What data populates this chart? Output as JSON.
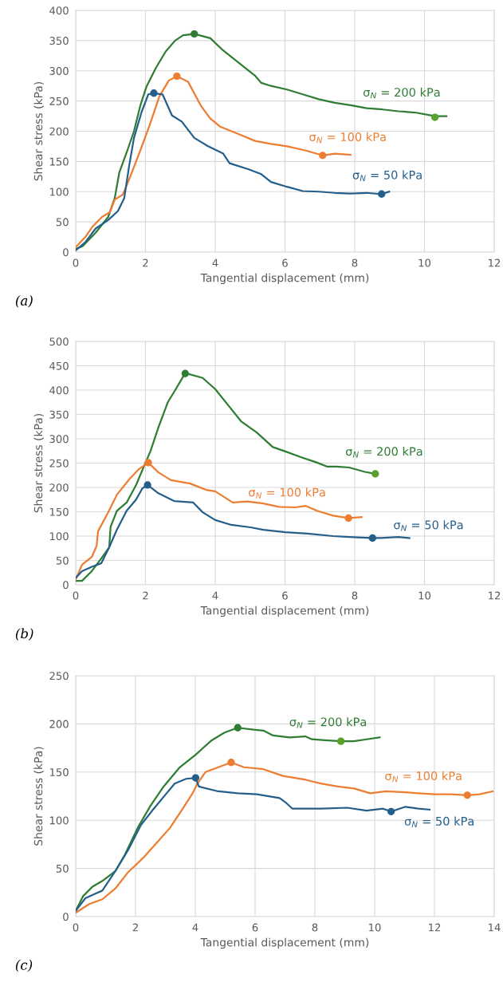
{
  "chart_data": [
    {
      "type": "line",
      "xlabel": "Tangential displacement (mm)",
      "ylabel": "Shear stress (kPa)",
      "xlim": [
        0,
        12
      ],
      "xticks": [
        0,
        2,
        4,
        6,
        8,
        10,
        12
      ],
      "ylim": [
        0,
        400
      ],
      "yticks": [
        0,
        50,
        100,
        150,
        200,
        250,
        300,
        350,
        400
      ],
      "grid": true,
      "marker": "none",
      "series": [
        {
          "name": "σ$_{N}$ = 200 kPa",
          "color": "#2e7d32",
          "x": [
            0,
            0.2,
            0.57,
            0.93,
            1.12,
            1.25,
            1.48,
            1.67,
            1.85,
            2.03,
            2.3,
            2.58,
            2.85,
            3.08,
            3.4,
            3.86,
            4.22,
            4.68,
            5.14,
            5.32,
            5.6,
            6.06,
            6.51,
            6.97,
            7.43,
            7.88,
            8.34,
            8.8,
            9.26,
            9.73,
            10.31,
            10.63
          ],
          "values": [
            5,
            10,
            32,
            58,
            90,
            132,
            168,
            200,
            242,
            274,
            305,
            332,
            350,
            359,
            361,
            354,
            334,
            313,
            292,
            280,
            275,
            269,
            261,
            253,
            247,
            243,
            238,
            236,
            233,
            231,
            225,
            225
          ]
        },
        {
          "name": "σ$_{N}$ = 100 kPa",
          "color": "#ed7d31",
          "x": [
            0,
            0.29,
            0.48,
            0.75,
            0.98,
            1.12,
            1.35,
            1.57,
            1.85,
            2.12,
            2.4,
            2.67,
            2.9,
            3.22,
            3.59,
            3.86,
            4.13,
            4.68,
            5.14,
            5.6,
            6.06,
            6.6,
            7.08,
            7.43,
            7.88
          ],
          "values": [
            8,
            26,
            42,
            58,
            66,
            87,
            95,
            126,
            168,
            210,
            258,
            284,
            291,
            282,
            242,
            221,
            208,
            195,
            184,
            179,
            175,
            168,
            160,
            163,
            161
          ]
        },
        {
          "name": "σ$_{N}$ = 50 kPa",
          "color": "#245f8c",
          "x": [
            0,
            0.27,
            0.57,
            0.93,
            1.21,
            1.39,
            1.53,
            1.67,
            1.89,
            2.08,
            2.24,
            2.49,
            2.76,
            3.04,
            3.4,
            3.77,
            4.23,
            4.41,
            4.96,
            5.32,
            5.6,
            6.06,
            6.51,
            6.97,
            7.43,
            7.88,
            8.34,
            8.77,
            8.99
          ],
          "values": [
            3,
            16,
            39,
            53,
            68,
            89,
            142,
            189,
            232,
            261,
            263,
            261,
            226,
            216,
            189,
            176,
            163,
            147,
            137,
            129,
            116,
            108,
            101,
            100,
            98,
            97,
            98,
            96,
            100
          ]
        },
        {
          "type": "scatter",
          "marker": "circle",
          "colors": [
            "#2e7d32",
            "#ed7d31",
            "#245f8c"
          ],
          "x": [
            3.4,
            2.9,
            2.24
          ],
          "values": [
            361,
            291,
            263
          ]
        },
        {
          "type": "scatter",
          "marker": "circle",
          "colors": [
            "#5aa02c",
            "#ed7d31",
            "#245f8c"
          ],
          "x": [
            10.3,
            7.08,
            8.77
          ],
          "values": [
            223,
            160,
            96
          ]
        }
      ],
      "annotations": [
        "(a)"
      ]
    },
    {
      "type": "line",
      "xlabel": "Tangential displacement (mm)",
      "ylabel": "Shear stress (kPa)",
      "xlim": [
        0,
        12
      ],
      "xticks": [
        0,
        2,
        4,
        6,
        8,
        10,
        12
      ],
      "ylim": [
        0,
        500
      ],
      "yticks": [
        0,
        50,
        100,
        150,
        200,
        250,
        300,
        350,
        400,
        450,
        500
      ],
      "grid": true,
      "marker": "none",
      "series": [
        {
          "name": "σ$_{N}$ = 200 kPa",
          "color": "#2e7d32",
          "x": [
            0,
            0.18,
            0.46,
            0.73,
            0.96,
            1.0,
            1.18,
            1.46,
            1.73,
            1.96,
            2.14,
            2.37,
            2.64,
            2.87,
            3.14,
            3.64,
            4.0,
            4.37,
            4.74,
            5.19,
            5.65,
            6.01,
            6.47,
            6.92,
            7.2,
            7.47,
            7.84,
            8.29,
            8.59
          ],
          "values": [
            8,
            8,
            28,
            54,
            77,
            119,
            152,
            169,
            205,
            244,
            274,
            323,
            375,
            402,
            435,
            425,
            402,
            369,
            336,
            313,
            283,
            274,
            262,
            251,
            243,
            243,
            241,
            232,
            228
          ]
        },
        {
          "name": "σ$_{N}$ = 100 kPa",
          "color": "#ed7d31",
          "x": [
            0,
            0.18,
            0.46,
            0.6,
            0.64,
            0.91,
            1.18,
            1.55,
            1.82,
            2.08,
            2.37,
            2.73,
            3.28,
            3.74,
            4.0,
            4.5,
            4.92,
            5.38,
            5.83,
            6.29,
            6.6,
            6.92,
            7.38,
            7.82,
            8.2
          ],
          "values": [
            11,
            41,
            57,
            80,
            110,
            146,
            185,
            218,
            238,
            251,
            231,
            215,
            208,
            195,
            192,
            169,
            171,
            167,
            160,
            159,
            162,
            152,
            142,
            137,
            139
          ]
        },
        {
          "name": "σ$_{N}$ = 50 kPa",
          "color": "#245f8c",
          "x": [
            0,
            0.18,
            0.46,
            0.73,
            0.96,
            1.18,
            1.46,
            1.73,
            1.91,
            2.06,
            2.37,
            2.82,
            3.37,
            3.64,
            4.0,
            4.46,
            5.01,
            5.38,
            6.01,
            6.65,
            7.38,
            7.84,
            8.49,
            8.75,
            9.25,
            9.57
          ],
          "values": [
            14,
            28,
            37,
            44,
            77,
            113,
            152,
            175,
            198,
            205,
            188,
            172,
            169,
            149,
            133,
            123,
            118,
            113,
            108,
            105,
            100,
            98,
            96,
            96,
            98,
            96
          ]
        },
        {
          "type": "scatter",
          "marker": "circle",
          "colors": [
            "#2e7d32",
            "#ed7d31",
            "#245f8c"
          ],
          "x": [
            3.14,
            2.08,
            2.06
          ],
          "values": [
            434,
            251,
            205
          ]
        },
        {
          "type": "scatter",
          "marker": "circle",
          "colors": [
            "#5aa02c",
            "#ed7d31",
            "#245f8c"
          ],
          "x": [
            8.59,
            7.82,
            8.51
          ],
          "values": [
            228,
            137,
            96
          ]
        }
      ],
      "annotations": [
        "(b)"
      ]
    },
    {
      "type": "line",
      "xlabel": "Tangential displacement (mm)",
      "ylabel": "Shear stress (kPa)",
      "xlim": [
        0,
        14
      ],
      "xticks": [
        0,
        2,
        4,
        6,
        8,
        10,
        12,
        14
      ],
      "ylim": [
        0,
        250
      ],
      "yticks": [
        0,
        50,
        100,
        150,
        200,
        250
      ],
      "grid": true,
      "marker": "none",
      "series": [
        {
          "name": "σ$_{N}$ = 200 kPa",
          "color": "#2e7d32",
          "x": [
            0,
            0.24,
            0.56,
            0.89,
            1.32,
            1.64,
            2.07,
            2.5,
            2.94,
            3.48,
            4.01,
            4.55,
            4.98,
            5.42,
            5.95,
            6.28,
            6.6,
            7.15,
            7.68,
            7.9,
            8.33,
            8.87,
            9.3,
            9.73,
            10.17
          ],
          "values": [
            6,
            21,
            31,
            37,
            47,
            64,
            92,
            115,
            135,
            155,
            168,
            183,
            191,
            196,
            194,
            193,
            188,
            186,
            187,
            184,
            183,
            182,
            182,
            184,
            186
          ]
        },
        {
          "name": "σ$_{N}$ = 100 kPa",
          "color": "#ed7d31",
          "x": [
            0,
            0.45,
            0.89,
            1.32,
            1.75,
            2.29,
            2.72,
            3.15,
            3.58,
            3.91,
            4.07,
            4.34,
            4.77,
            5.2,
            5.63,
            6.28,
            6.93,
            7.69,
            8.23,
            8.77,
            9.31,
            9.85,
            10.38,
            11.03,
            11.46,
            12.0,
            12.54,
            13.1,
            13.51,
            13.95
          ],
          "values": [
            4,
            13,
            18,
            29,
            46,
            62,
            77,
            92,
            112,
            128,
            138,
            150,
            155,
            160,
            155,
            153,
            146,
            142,
            138,
            135,
            133,
            128,
            130,
            129,
            128,
            127,
            127,
            126,
            127,
            130
          ]
        },
        {
          "name": "σ$_{N}$ = 50 kPa",
          "color": "#245f8c",
          "x": [
            0,
            0.32,
            0.67,
            0.89,
            1.32,
            1.75,
            2.18,
            2.61,
            3.04,
            3.31,
            3.69,
            4.01,
            4.12,
            4.77,
            5.42,
            6.06,
            6.82,
            7.04,
            7.25,
            7.69,
            8.23,
            9.08,
            9.73,
            10.28,
            10.55,
            11.03,
            11.46,
            11.84
          ],
          "values": [
            6,
            19,
            24,
            27,
            47,
            69,
            95,
            112,
            128,
            138,
            143,
            144,
            135,
            130,
            128,
            127,
            123,
            118,
            112,
            112,
            112,
            113,
            110,
            112,
            109,
            114,
            112,
            111
          ]
        },
        {
          "type": "scatter",
          "marker": "circle",
          "colors": [
            "#2e7d32",
            "#ed7d31",
            "#245f8c"
          ],
          "x": [
            5.42,
            5.2,
            4.01
          ],
          "values": [
            196,
            160,
            144
          ]
        },
        {
          "type": "scatter",
          "marker": "circle",
          "colors": [
            "#5aa02c",
            "#ed7d31",
            "#245f8c"
          ],
          "x": [
            8.87,
            13.1,
            10.55
          ],
          "values": [
            182,
            126,
            109
          ]
        }
      ],
      "annotations": [
        "(c)"
      ]
    }
  ]
}
